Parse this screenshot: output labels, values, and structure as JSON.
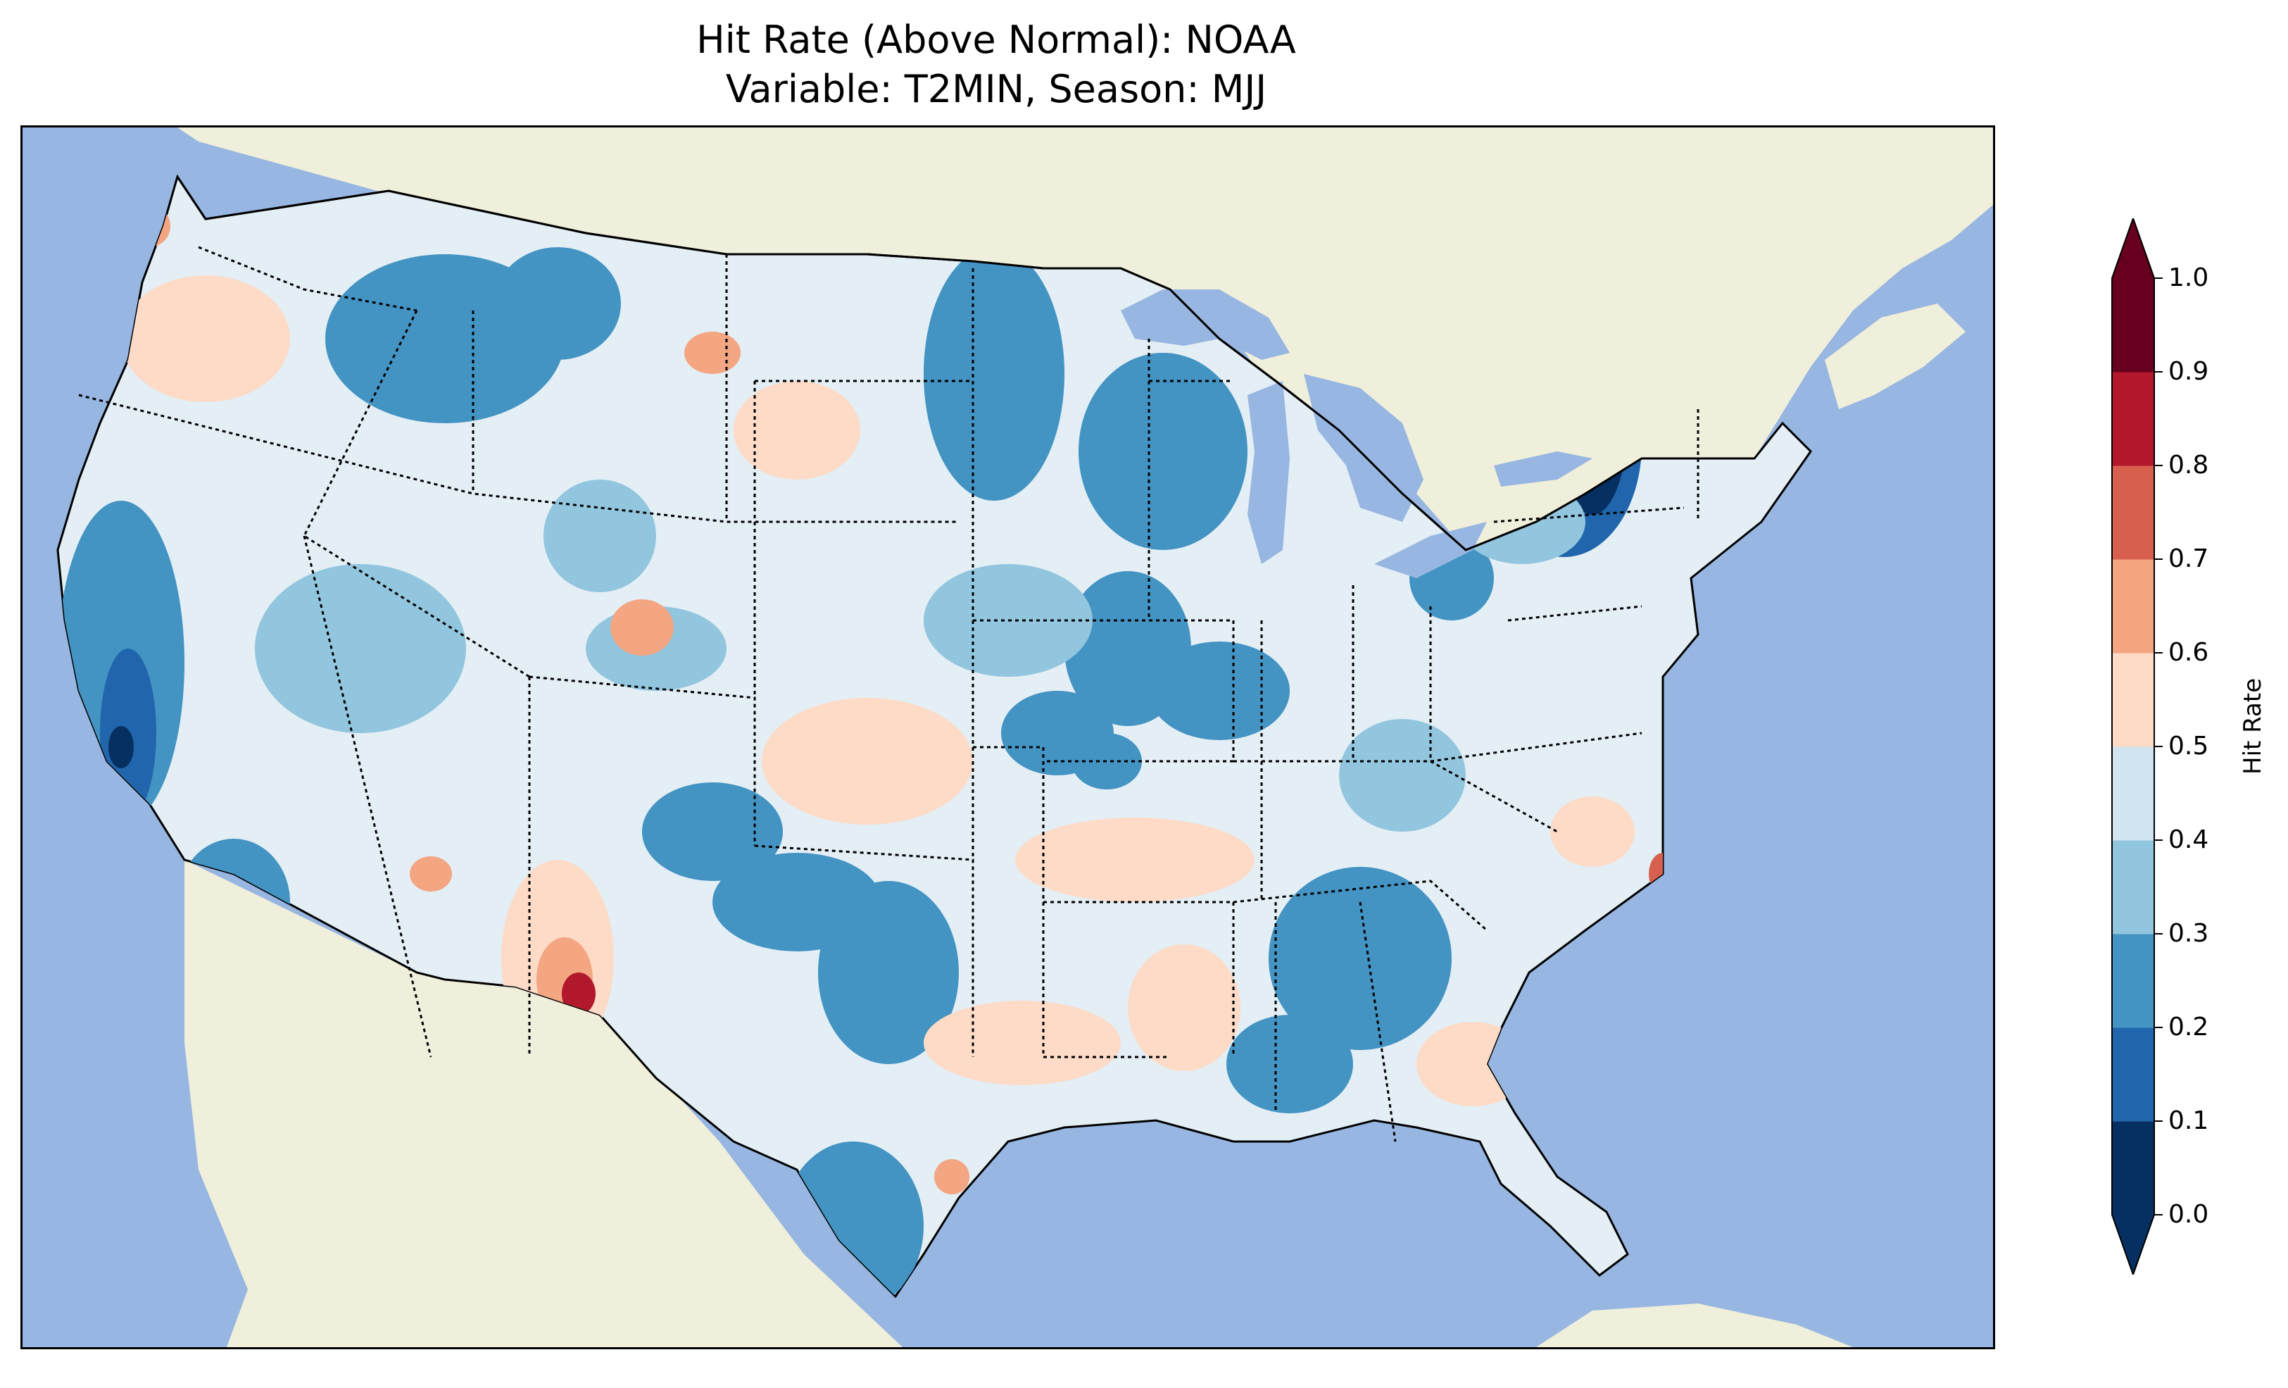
{
  "title": {
    "line1": "Hit Rate (Above Normal): NOAA",
    "line2": "Variable: T2MIN, Season: MJJ"
  },
  "colorbar": {
    "label": "Hit Rate",
    "ticks": [
      "0.0",
      "0.1",
      "0.2",
      "0.3",
      "0.4",
      "0.5",
      "0.6",
      "0.7",
      "0.8",
      "0.9",
      "1.0"
    ],
    "colors": [
      "#053061",
      "#2166ac",
      "#4393c3",
      "#92c5de",
      "#d1e5f0",
      "#fddbc7",
      "#f4a582",
      "#d6604d",
      "#b2182b",
      "#67001f"
    ],
    "under_color": "#053061",
    "over_color": "#67001f"
  },
  "map_colors": {
    "ocean": "#97b6e1",
    "land": "#efefdb",
    "lakes": "#97b6e1"
  }
}
